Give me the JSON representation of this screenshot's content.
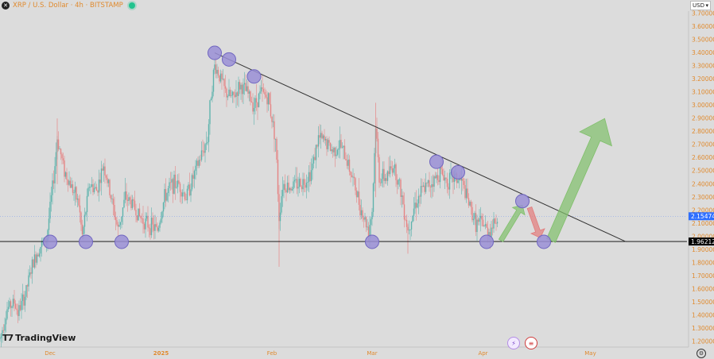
{
  "header": {
    "symbol_icon": "x-logo-icon",
    "title": "XRP / U.S. Dollar · 4h · BITSTAMP",
    "live_indicator_color": "#22c38e"
  },
  "currency_selector": {
    "label": "USD"
  },
  "branding": {
    "name": "TradingView"
  },
  "events": [
    {
      "icon": "lightning-event-icon"
    },
    {
      "icon": "us-flag-event-icon"
    }
  ],
  "settings_icon": "gear-icon",
  "chart_data": {
    "type": "candlestick",
    "symbol": "XRP/USD",
    "timeframe": "4h",
    "exchange": "BITSTAMP",
    "title": "XRP / U.S. Dollar · 4h · BITSTAMP",
    "ylim": [
      1.15,
      3.75
    ],
    "y_ticks": [
      "3.70000",
      "3.60000",
      "3.50000",
      "3.40000",
      "3.30000",
      "3.20000",
      "3.10000",
      "3.00000",
      "2.90000",
      "2.80000",
      "2.70000",
      "2.60000",
      "2.50000",
      "2.40000",
      "2.30000",
      "2.20000",
      "2.10000",
      "2.00000",
      "1.90000",
      "1.80000",
      "1.70000",
      "1.60000",
      "1.50000",
      "1.40000",
      "1.30000",
      "1.20000"
    ],
    "x_ticks": [
      {
        "label": "Dec",
        "date": "2024-12-01",
        "bold": false
      },
      {
        "label": "2025",
        "date": "2025-01-01",
        "bold": true
      },
      {
        "label": "Feb",
        "date": "2025-02-01",
        "bold": false
      },
      {
        "label": "Mar",
        "date": "2025-03-01",
        "bold": false
      },
      {
        "label": "Apr",
        "date": "2025-04-01",
        "bold": false
      },
      {
        "label": "May",
        "date": "2025-05-01",
        "bold": false
      }
    ],
    "x_range": [
      "2024-11-17",
      "2025-05-16"
    ],
    "price_path": [
      [
        "2024-11-17",
        1.22
      ],
      [
        "2024-11-19",
        1.45
      ],
      [
        "2024-11-21",
        1.5
      ],
      [
        "2024-11-22",
        1.42
      ],
      [
        "2024-11-24",
        1.55
      ],
      [
        "2024-11-26",
        1.78
      ],
      [
        "2024-11-28",
        1.92
      ],
      [
        "2024-11-30",
        1.98
      ],
      [
        "2024-12-02",
        2.45
      ],
      [
        "2024-12-03",
        2.75
      ],
      [
        "2024-12-05",
        2.5
      ],
      [
        "2024-12-07",
        2.38
      ],
      [
        "2024-12-09",
        2.25
      ],
      [
        "2024-12-10",
        2.0
      ],
      [
        "2024-12-12",
        2.4
      ],
      [
        "2024-12-14",
        2.35
      ],
      [
        "2024-12-16",
        2.55
      ],
      [
        "2024-12-18",
        2.3
      ],
      [
        "2024-12-20",
        2.05
      ],
      [
        "2024-12-22",
        2.3
      ],
      [
        "2024-12-24",
        2.25
      ],
      [
        "2024-12-26",
        2.15
      ],
      [
        "2024-12-28",
        2.1
      ],
      [
        "2024-12-31",
        2.05
      ],
      [
        "2025-01-02",
        2.3
      ],
      [
        "2025-01-04",
        2.4
      ],
      [
        "2025-01-06",
        2.4
      ],
      [
        "2025-01-08",
        2.3
      ],
      [
        "2025-01-10",
        2.45
      ],
      [
        "2025-01-12",
        2.6
      ],
      [
        "2025-01-14",
        2.75
      ],
      [
        "2025-01-15",
        3.1
      ],
      [
        "2025-01-16",
        3.3
      ],
      [
        "2025-01-17",
        3.25
      ],
      [
        "2025-01-19",
        3.1
      ],
      [
        "2025-01-21",
        3.05
      ],
      [
        "2025-01-23",
        3.15
      ],
      [
        "2025-01-25",
        3.1
      ],
      [
        "2025-01-27",
        3.0
      ],
      [
        "2025-01-29",
        3.1
      ],
      [
        "2025-01-31",
        3.05
      ],
      [
        "2025-02-02",
        2.75
      ],
      [
        "2025-02-03",
        2.15
      ],
      [
        "2025-02-04",
        2.4
      ],
      [
        "2025-02-06",
        2.38
      ],
      [
        "2025-02-08",
        2.4
      ],
      [
        "2025-02-10",
        2.42
      ],
      [
        "2025-02-12",
        2.5
      ],
      [
        "2025-02-14",
        2.75
      ],
      [
        "2025-02-16",
        2.72
      ],
      [
        "2025-02-18",
        2.65
      ],
      [
        "2025-02-20",
        2.7
      ],
      [
        "2025-02-22",
        2.58
      ],
      [
        "2025-02-24",
        2.4
      ],
      [
        "2025-02-26",
        2.2
      ],
      [
        "2025-02-28",
        2.05
      ],
      [
        "2025-03-01",
        2.2
      ],
      [
        "2025-03-02",
        2.85
      ],
      [
        "2025-03-03",
        2.45
      ],
      [
        "2025-03-05",
        2.45
      ],
      [
        "2025-03-07",
        2.55
      ],
      [
        "2025-03-09",
        2.35
      ],
      [
        "2025-03-11",
        2.05
      ],
      [
        "2025-03-13",
        2.25
      ],
      [
        "2025-03-15",
        2.35
      ],
      [
        "2025-03-17",
        2.4
      ],
      [
        "2025-03-19",
        2.45
      ],
      [
        "2025-03-20",
        2.5
      ],
      [
        "2025-03-22",
        2.42
      ],
      [
        "2025-03-24",
        2.45
      ],
      [
        "2025-03-26",
        2.42
      ],
      [
        "2025-03-28",
        2.25
      ],
      [
        "2025-03-30",
        2.1
      ],
      [
        "2025-04-01",
        2.1
      ],
      [
        "2025-04-02",
        2.05
      ],
      [
        "2025-04-03",
        2.05
      ],
      [
        "2025-04-05",
        2.15
      ]
    ],
    "horizontal_levels": [
      {
        "name": "support",
        "value": 1.96212,
        "label": "1.96212",
        "color": "#000000"
      },
      {
        "name": "last",
        "value": 2.15474,
        "label": "2.15474",
        "color": "#2f6fff"
      }
    ],
    "trendline": {
      "from": [
        "2025-01-16",
        3.4
      ],
      "to": [
        "2025-05-11",
        1.96
      ],
      "color": "#333333"
    },
    "markers": [
      {
        "date": "2024-12-01",
        "price": 1.96
      },
      {
        "date": "2024-12-11",
        "price": 1.96
      },
      {
        "date": "2024-12-21",
        "price": 1.96
      },
      {
        "date": "2025-01-16",
        "price": 3.4
      },
      {
        "date": "2025-01-20",
        "price": 3.35
      },
      {
        "date": "2025-01-27",
        "price": 3.22
      },
      {
        "date": "2025-03-01",
        "price": 1.96
      },
      {
        "date": "2025-03-19",
        "price": 2.57
      },
      {
        "date": "2025-03-25",
        "price": 2.49
      },
      {
        "date": "2025-04-02",
        "price": 1.96
      },
      {
        "date": "2025-04-12",
        "price": 2.27
      },
      {
        "date": "2025-04-18",
        "price": 1.96
      }
    ],
    "arrows": [
      {
        "from": [
          "2025-04-06",
          1.97
        ],
        "to": [
          "2025-04-12",
          2.24
        ],
        "color": "#7fbf6a"
      },
      {
        "from": [
          "2025-04-14",
          2.22
        ],
        "to": [
          "2025-04-17",
          1.99
        ],
        "color": "#e27a7a"
      },
      {
        "from": [
          "2025-04-20",
          1.97
        ],
        "to": [
          "2025-05-05",
          2.9
        ],
        "color": "#7fbf6a"
      }
    ],
    "colors": {
      "up": "#5fb3ad",
      "down": "#e58585",
      "marker_fill": "#9a8fd6",
      "marker_stroke": "#7066c0"
    },
    "grid": false
  }
}
